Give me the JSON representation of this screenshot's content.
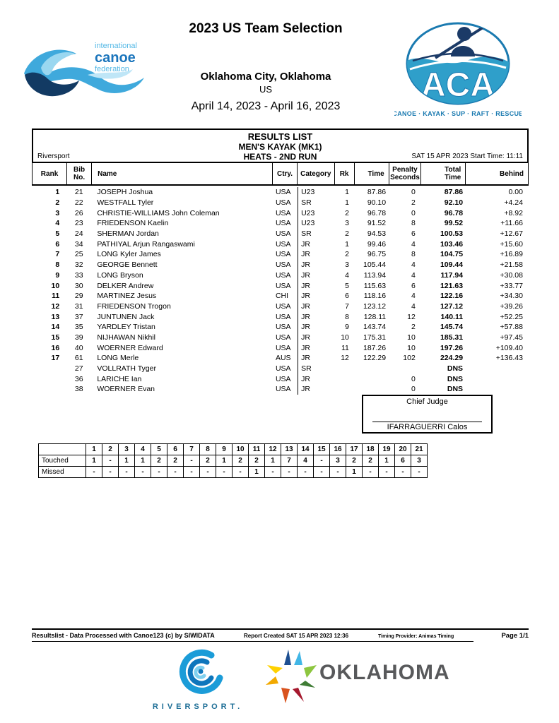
{
  "header": {
    "event_title": "2023 US Team Selection",
    "location": "Oklahoma City, Oklahoma",
    "country": "US",
    "dates": "April 14, 2023 - April 16, 2023"
  },
  "logos": {
    "icf": {
      "line1": "international",
      "line2": "canoe",
      "line3": "federation"
    },
    "aca": {
      "acronym": "ACA",
      "tagline": "CANOE · KAYAK · SUP · RAFT · RESCUE"
    },
    "riversport": {
      "label": "RIVERSPORT."
    },
    "oklahoma": {
      "label": "OKLAHOMA"
    }
  },
  "results": {
    "title": "RESULTS LIST",
    "subtitle": "MEN'S KAYAK (MK1)",
    "run": "HEATS - 2ND RUN",
    "venue": "Riversport",
    "start_info": "SAT 15 APR 2023 Start Time: 11:11",
    "columns": [
      "Rank",
      "Bib\nNo.",
      "Name",
      "Ctry.",
      "Category",
      "Rk",
      "Time",
      "Penalty\nSeconds",
      "Total\nTime",
      "Behind"
    ],
    "row_keys": [
      "rank",
      "bib",
      "name",
      "ctry",
      "category",
      "rk",
      "time",
      "penalty",
      "total",
      "behind"
    ],
    "rows": [
      {
        "rank": "1",
        "bib": "21",
        "name": "JOSEPH Joshua",
        "ctry": "USA",
        "category": "U23",
        "rk": "1",
        "time": "87.86",
        "penalty": "0",
        "total": "87.86",
        "behind": "0.00"
      },
      {
        "rank": "2",
        "bib": "22",
        "name": "WESTFALL Tyler",
        "ctry": "USA",
        "category": "SR",
        "rk": "1",
        "time": "90.10",
        "penalty": "2",
        "total": "92.10",
        "behind": "+4.24"
      },
      {
        "rank": "3",
        "bib": "26",
        "name": "CHRISTIE-WILLIAMS John Coleman",
        "ctry": "USA",
        "category": "U23",
        "rk": "2",
        "time": "96.78",
        "penalty": "0",
        "total": "96.78",
        "behind": "+8.92"
      },
      {
        "rank": "4",
        "bib": "23",
        "name": "FRIEDENSON Kaelin",
        "ctry": "USA",
        "category": "U23",
        "rk": "3",
        "time": "91.52",
        "penalty": "8",
        "total": "99.52",
        "behind": "+11.66"
      },
      {
        "rank": "5",
        "bib": "24",
        "name": "SHERMAN Jordan",
        "ctry": "USA",
        "category": "SR",
        "rk": "2",
        "time": "94.53",
        "penalty": "6",
        "total": "100.53",
        "behind": "+12.67"
      },
      {
        "rank": "6",
        "bib": "34",
        "name": "PATHIYAL Arjun Rangaswami",
        "ctry": "USA",
        "category": "JR",
        "rk": "1",
        "time": "99.46",
        "penalty": "4",
        "total": "103.46",
        "behind": "+15.60"
      },
      {
        "rank": "7",
        "bib": "25",
        "name": "LONG Kyler James",
        "ctry": "USA",
        "category": "JR",
        "rk": "2",
        "time": "96.75",
        "penalty": "8",
        "total": "104.75",
        "behind": "+16.89"
      },
      {
        "rank": "8",
        "bib": "32",
        "name": "GEORGE Bennett",
        "ctry": "USA",
        "category": "JR",
        "rk": "3",
        "time": "105.44",
        "penalty": "4",
        "total": "109.44",
        "behind": "+21.58"
      },
      {
        "rank": "9",
        "bib": "33",
        "name": "LONG Bryson",
        "ctry": "USA",
        "category": "JR",
        "rk": "4",
        "time": "113.94",
        "penalty": "4",
        "total": "117.94",
        "behind": "+30.08"
      },
      {
        "rank": "10",
        "bib": "30",
        "name": "DELKER Andrew",
        "ctry": "USA",
        "category": "JR",
        "rk": "5",
        "time": "115.63",
        "penalty": "6",
        "total": "121.63",
        "behind": "+33.77"
      },
      {
        "rank": "11",
        "bib": "29",
        "name": "MARTINEZ Jesus",
        "ctry": "CHI",
        "category": "JR",
        "rk": "6",
        "time": "118.16",
        "penalty": "4",
        "total": "122.16",
        "behind": "+34.30"
      },
      {
        "rank": "12",
        "bib": "31",
        "name": "FRIEDENSON Trogon",
        "ctry": "USA",
        "category": "JR",
        "rk": "7",
        "time": "123.12",
        "penalty": "4",
        "total": "127.12",
        "behind": "+39.26"
      },
      {
        "rank": "13",
        "bib": "37",
        "name": "JUNTUNEN Jack",
        "ctry": "USA",
        "category": "JR",
        "rk": "8",
        "time": "128.11",
        "penalty": "12",
        "total": "140.11",
        "behind": "+52.25"
      },
      {
        "rank": "14",
        "bib": "35",
        "name": "YARDLEY Tristan",
        "ctry": "USA",
        "category": "JR",
        "rk": "9",
        "time": "143.74",
        "penalty": "2",
        "total": "145.74",
        "behind": "+57.88"
      },
      {
        "rank": "15",
        "bib": "39",
        "name": "NIJHAWAN Nikhil",
        "ctry": "USA",
        "category": "JR",
        "rk": "10",
        "time": "175.31",
        "penalty": "10",
        "total": "185.31",
        "behind": "+97.45"
      },
      {
        "rank": "16",
        "bib": "40",
        "name": "WOERNER Edward",
        "ctry": "USA",
        "category": "JR",
        "rk": "11",
        "time": "187.26",
        "penalty": "10",
        "total": "197.26",
        "behind": "+109.40"
      },
      {
        "rank": "17",
        "bib": "61",
        "name": "LONG Merle",
        "ctry": "AUS",
        "category": "JR",
        "rk": "12",
        "time": "122.29",
        "penalty": "102",
        "total": "224.29",
        "behind": "+136.43"
      },
      {
        "rank": "",
        "bib": "27",
        "name": "VOLLRATH Tyger",
        "ctry": "USA",
        "category": "SR",
        "rk": "",
        "time": "",
        "penalty": "",
        "total": "DNS",
        "behind": ""
      },
      {
        "rank": "",
        "bib": "36",
        "name": "LARICHE Ian",
        "ctry": "USA",
        "category": "JR",
        "rk": "",
        "time": "",
        "penalty": "0",
        "total": "DNS",
        "behind": ""
      },
      {
        "rank": "",
        "bib": "38",
        "name": "WOERNER Evan",
        "ctry": "USA",
        "category": "JR",
        "rk": "",
        "time": "",
        "penalty": "0",
        "total": "DNS",
        "behind": ""
      }
    ]
  },
  "judge": {
    "title": "Chief Judge",
    "name": "IFARRAGUERRI Calos"
  },
  "gates": {
    "gate_numbers": [
      "1",
      "2",
      "3",
      "4",
      "5",
      "6",
      "7",
      "8",
      "9",
      "10",
      "11",
      "12",
      "13",
      "14",
      "15",
      "16",
      "17",
      "18",
      "19",
      "20",
      "21"
    ],
    "touched_label": "Touched",
    "missed_label": "Missed",
    "touched": [
      "1",
      "-",
      "1",
      "1",
      "2",
      "2",
      "-",
      "2",
      "1",
      "2",
      "2",
      "1",
      "7",
      "4",
      "-",
      "3",
      "2",
      "2",
      "1",
      "6",
      "3"
    ],
    "missed": [
      "-",
      "-",
      "-",
      "-",
      "-",
      "-",
      "-",
      "-",
      "-",
      "-",
      "1",
      "-",
      "-",
      "-",
      "-",
      "-",
      "1",
      "-",
      "-",
      "-",
      "-"
    ]
  },
  "footer": {
    "left": "Resultslist - Data Processed with Canoe123 (c) by SIWIDATA",
    "center": "Report Created SAT 15 APR 2023 12:36",
    "timing": "Timing Provider: Animas Timing",
    "page": "Page 1/1"
  },
  "colors": {
    "icf_light_blue": "#55b9e6",
    "icf_dark_blue": "#1b75bc",
    "aca_blue": "#2f9fca",
    "aca_navy": "#1b3a67",
    "oklahoma_text": "#58595b",
    "riversport_text": "#1d6e96"
  }
}
